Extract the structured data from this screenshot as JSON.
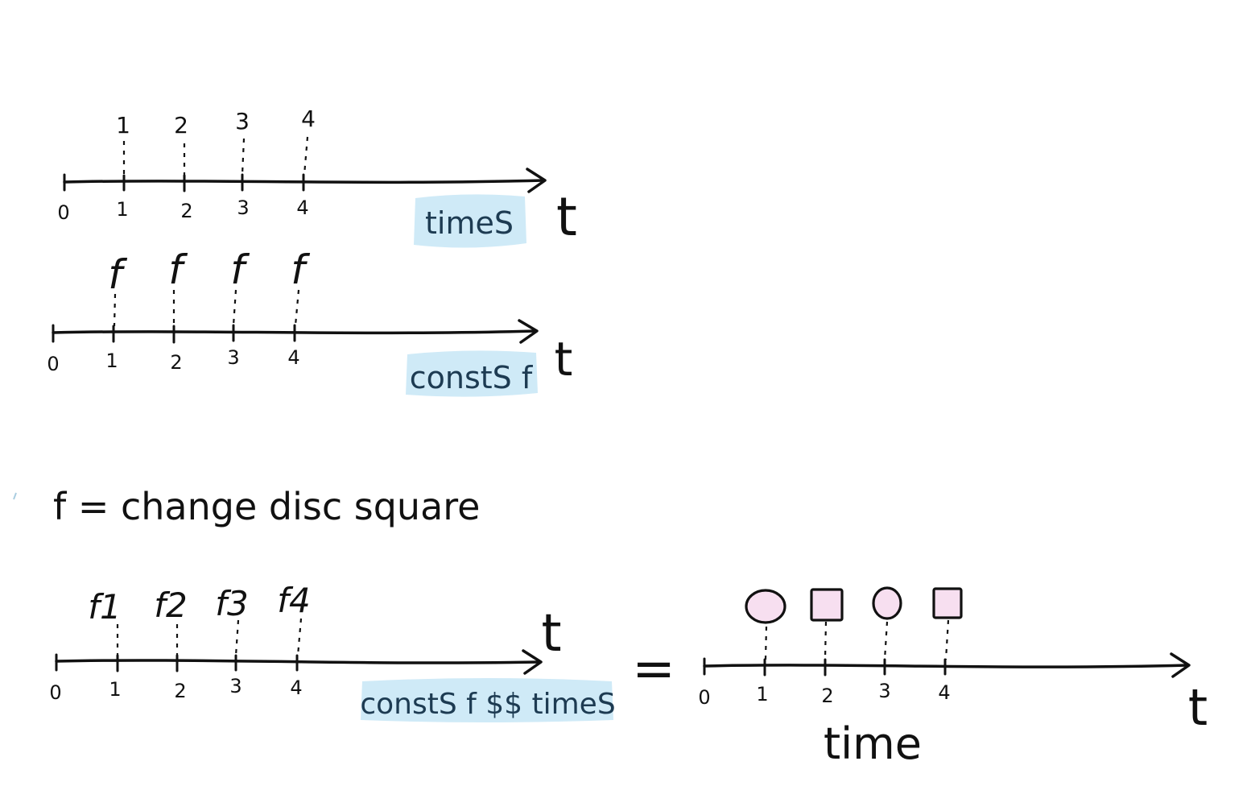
{
  "colors": {
    "highlight": "#cfeaf7",
    "shape_fill": "#f7dff0",
    "ink": "#111111"
  },
  "panel1": {
    "ticks": [
      "0",
      "1",
      "2",
      "3",
      "4"
    ],
    "marks": [
      "1",
      "2",
      "3",
      "4"
    ],
    "highlight": "timeS",
    "axis_label": "t"
  },
  "panel2": {
    "ticks": [
      "0",
      "1",
      "2",
      "3",
      "4"
    ],
    "marks": [
      "f",
      "f",
      "f",
      "f"
    ],
    "highlight": "constS f",
    "axis_label": "t"
  },
  "definition": "f = change disc square",
  "panel3": {
    "ticks": [
      "0",
      "1",
      "2",
      "3",
      "4"
    ],
    "marks": [
      "f1",
      "f2",
      "f3",
      "f4"
    ],
    "highlight": "constS f $$ timeS",
    "axis_label": "t"
  },
  "equals": "=",
  "panel4": {
    "ticks": [
      "0",
      "1",
      "2",
      "3",
      "4"
    ],
    "shapes": [
      "disc",
      "square",
      "disc",
      "square"
    ],
    "axis_label": "t",
    "below_label": "time"
  }
}
